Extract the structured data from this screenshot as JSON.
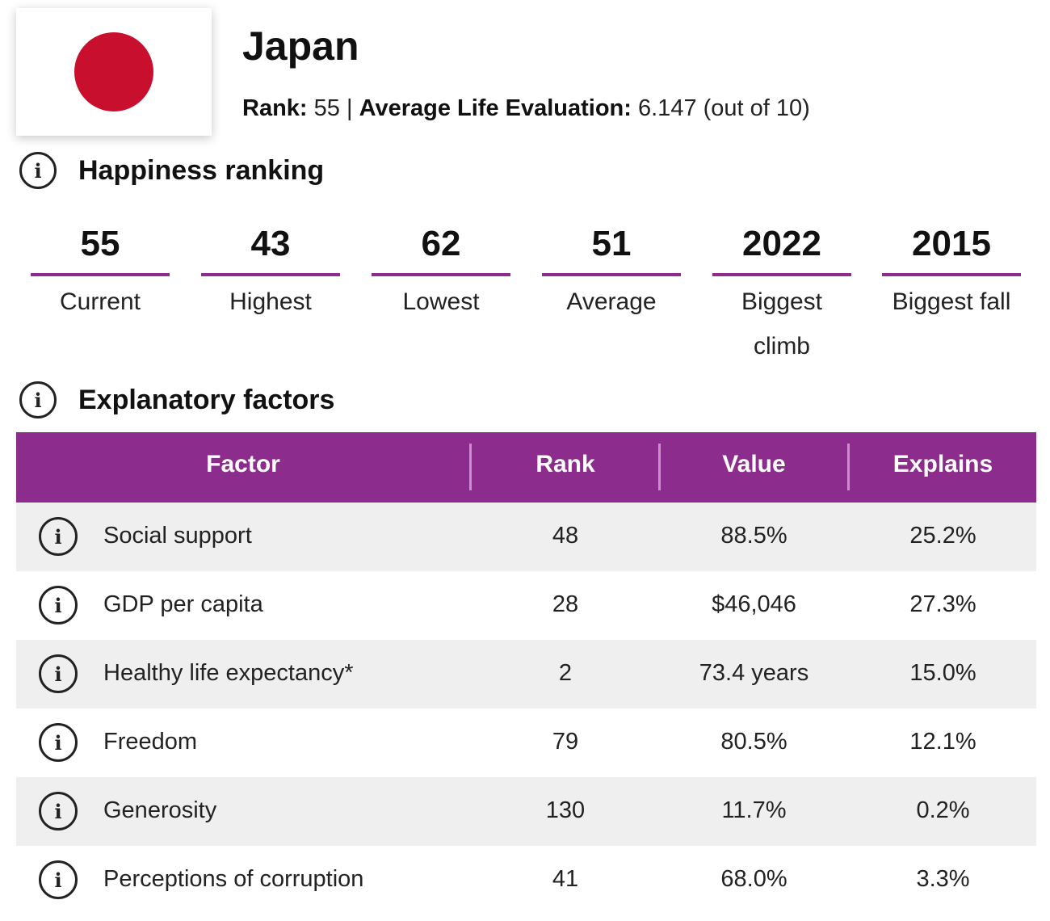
{
  "country": {
    "name": "Japan",
    "flag_colors": {
      "background": "#ffffff",
      "disc": "#c8102e"
    }
  },
  "summary": {
    "rank_label": "Rank:",
    "rank_value": "55",
    "separator": "|",
    "evaluation_label": "Average Life Evaluation:",
    "evaluation_value": "6.147",
    "evaluation_scale": "(out of 10)"
  },
  "happiness_ranking": {
    "title": "Happiness ranking",
    "icon": "info-icon",
    "stats": [
      {
        "value": "55",
        "label": "Current"
      },
      {
        "value": "43",
        "label": "Highest"
      },
      {
        "value": "62",
        "label": "Lowest"
      },
      {
        "value": "51",
        "label": "Average"
      },
      {
        "value": "2022",
        "label": "Biggest climb"
      },
      {
        "value": "2015",
        "label": "Biggest fall"
      }
    ]
  },
  "explanatory_factors": {
    "title": "Explanatory factors",
    "icon": "info-icon",
    "columns": [
      "Factor",
      "Rank",
      "Value",
      "Explains"
    ],
    "rows": [
      {
        "factor": "Social support",
        "rank": "48",
        "value": "88.5%",
        "explains": "25.2%"
      },
      {
        "factor": "GDP per capita",
        "rank": "28",
        "value": "$46,046",
        "explains": "27.3%"
      },
      {
        "factor": "Healthy life expectancy*",
        "rank": "2",
        "value": "73.4 years",
        "explains": "15.0%"
      },
      {
        "factor": "Freedom",
        "rank": "79",
        "value": "80.5%",
        "explains": "12.1%"
      },
      {
        "factor": "Generosity",
        "rank": "130",
        "value": "11.7%",
        "explains": "0.2%"
      },
      {
        "factor": "Perceptions of corruption",
        "rank": "41",
        "value": "68.0%",
        "explains": "3.3%"
      }
    ]
  },
  "colors": {
    "accent": "#8c2c8c",
    "row_shade": "#efefef"
  }
}
